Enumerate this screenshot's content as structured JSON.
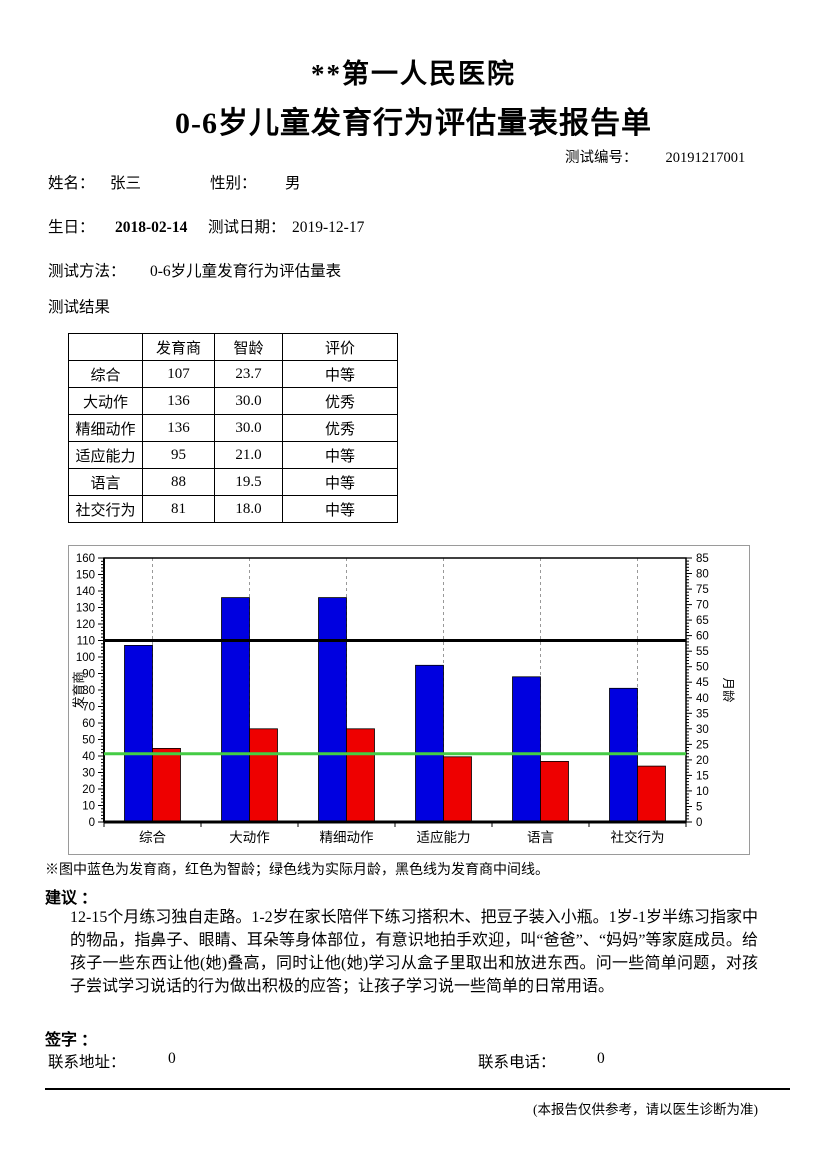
{
  "page": {
    "hospital_title": "**第一人民医院",
    "report_title": "0-6岁儿童发育行为评估量表报告单",
    "test_no_label": "测试编号：",
    "test_no_value": "20191217001",
    "fields": {
      "name_label": "姓名：",
      "name_value": "张三",
      "gender_label": "性别：",
      "gender_value": "男",
      "birthday_label": "生日：",
      "birthday_value": "2018-02-14",
      "test_date_label": "测试日期：",
      "test_date_value": "2019-12-17",
      "method_label": "测试方法：",
      "method_value": "0-6岁儿童发育行为评估量表",
      "result_label": "测试结果"
    },
    "table": {
      "headers": [
        "",
        "发育商",
        "智龄",
        "评价"
      ],
      "rows": [
        [
          "综合",
          "107",
          "23.7",
          "中等"
        ],
        [
          "大动作",
          "136",
          "30.0",
          "优秀"
        ],
        [
          "精细动作",
          "136",
          "30.0",
          "优秀"
        ],
        [
          "适应能力",
          "95",
          "21.0",
          "中等"
        ],
        [
          "语言",
          "88",
          "19.5",
          "中等"
        ],
        [
          "社交行为",
          "81",
          "18.0",
          "中等"
        ]
      ]
    },
    "chart_note": "※图中蓝色为发育商，红色为智龄；绿色线为实际月龄，黑色线为发育商中间线。",
    "suggestion_label": "建议 ：",
    "suggestion_text": "12-15个月练习独自走路。1-2岁在家长陪伴下练习搭积木、把豆子装入小瓶。1岁-1岁半练习指家中的物品，指鼻子、眼睛、耳朵等身体部位，有意识地拍手欢迎，叫“爸爸”、“妈妈”等家庭成员。给孩子一些东西让他(她)叠高，同时让他(她)学习从盒子里取出和放进东西。问一些简单问题，对孩子尝试学习说话的行为做出积极的应答；让孩子学习说一些简单的日常用语。",
    "signature_label": "签字 ：",
    "address_label": "联系地址：",
    "address_value": "0",
    "phone_label": "联系电话：",
    "phone_value": "0",
    "footer_note": "(本报告仅供参考，请以医生诊断为准)"
  },
  "chart_data": {
    "type": "bar",
    "categories": [
      "综合",
      "大动作",
      "精细动作",
      "适应能力",
      "语言",
      "社交行为"
    ],
    "series": [
      {
        "name": "发育商",
        "axis": "left",
        "color": "#0000e0",
        "values": [
          107,
          136,
          136,
          95,
          88,
          81
        ]
      },
      {
        "name": "智龄",
        "axis": "right",
        "color": "#ee0000",
        "values": [
          23.7,
          30.0,
          30.0,
          21.0,
          19.5,
          18.0
        ]
      }
    ],
    "left_axis": {
      "label": "发育商",
      "min": 0,
      "max": 160,
      "step": 10,
      "minor_step": 2
    },
    "right_axis": {
      "label": "月龄",
      "min": 0,
      "max": 85,
      "step": 5,
      "minor_step": 1
    },
    "reference_lines": [
      {
        "name": "发育商中间线",
        "axis": "left",
        "value": 110,
        "color": "#000000"
      },
      {
        "name": "实际月龄",
        "axis": "right",
        "value": 22,
        "color": "#44cc44"
      }
    ],
    "grid": "vertical-dashed",
    "gridline_color": "#999999",
    "legend_position": "none"
  }
}
